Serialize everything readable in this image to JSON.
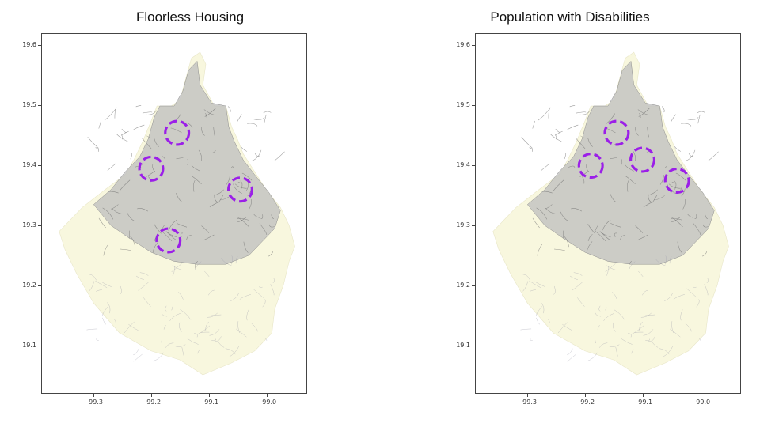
{
  "colors": {
    "highlight": "#9b1fe8",
    "territory_fill": "#f8f7de",
    "urban_fill": "#bdbdbd",
    "road": "#9a9aa8",
    "frame": "#444444"
  },
  "maps": [
    {
      "title": "Floorless Housing",
      "highlights": [
        {
          "lon": -99.155,
          "lat": 19.455
        },
        {
          "lon": -99.2,
          "lat": 19.395
        },
        {
          "lon": -99.045,
          "lat": 19.36
        },
        {
          "lon": -99.17,
          "lat": 19.275
        }
      ]
    },
    {
      "title": "Population with Disabilities",
      "highlights": [
        {
          "lon": -99.145,
          "lat": 19.455
        },
        {
          "lon": -99.19,
          "lat": 19.4
        },
        {
          "lon": -99.1,
          "lat": 19.41
        },
        {
          "lon": -99.04,
          "lat": 19.375
        }
      ]
    }
  ],
  "axes": {
    "xlim": [
      -99.39,
      -98.93
    ],
    "ylim": [
      19.02,
      19.62
    ],
    "xticks": [
      -99.3,
      -99.2,
      -99.1,
      -99.0
    ],
    "yticks": [
      19.1,
      19.2,
      19.3,
      19.4,
      19.5,
      19.6
    ],
    "xtick_labels": [
      "−99.3",
      "−99.2",
      "−99.1",
      "−99.0"
    ],
    "ytick_labels": [
      "19.1",
      "19.2",
      "19.3",
      "19.4",
      "19.5",
      "19.6"
    ]
  }
}
